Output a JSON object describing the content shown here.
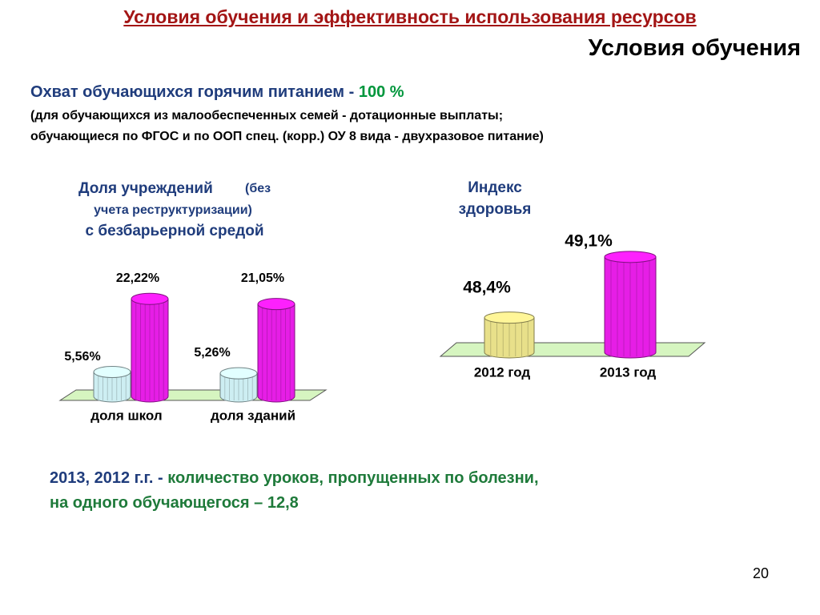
{
  "header": {
    "title": "Условия обучения и эффективность использования ресурсов",
    "section": "Условия обучения"
  },
  "coverage": {
    "text": "Охват обучающихся горячим питанием - ",
    "value": "100 %"
  },
  "note": [
    "(для обучающихся из малообеспеченных семей - дотационные выплаты;",
    "обучающиеся по ФГОС и по ООП спец. (корр.) ОУ 8 вида - двухразовое питание)"
  ],
  "chart_data": [
    {
      "type": "bar3d",
      "title": "Доля учреждений",
      "title_note": "(без",
      "title_note2": "учета реструктуризации)",
      "subtitle": "с безбарьерной средой",
      "categories": [
        "доля школ",
        "доля зданий"
      ],
      "series": [
        {
          "color": "#cdeef2",
          "values": [
            5.56,
            5.26
          ],
          "value_labels": [
            "5,56%",
            "5,26%"
          ]
        },
        {
          "color": "#e61ee6",
          "values": [
            22.22,
            21.05
          ],
          "value_labels": [
            "22,22%",
            "21,05%"
          ]
        }
      ],
      "ylim": [
        0,
        25
      ]
    },
    {
      "type": "bar3d-single",
      "title": [
        "Индекс",
        "здоровья"
      ],
      "categories": [
        "2012 год",
        "2013 год"
      ],
      "values": [
        48.4,
        49.1
      ],
      "value_labels": [
        "48,4%",
        "49,1%"
      ],
      "colors": [
        "#e8e08a",
        "#e61ee6"
      ],
      "ylim": [
        48,
        49.2
      ]
    }
  ],
  "bottom": {
    "years": "2013, 2012 г.г. - ",
    "text1": "количество уроков, пропущенных по болезни,",
    "text2": "на одного обучающегося – 12,8"
  },
  "page_number": "20"
}
